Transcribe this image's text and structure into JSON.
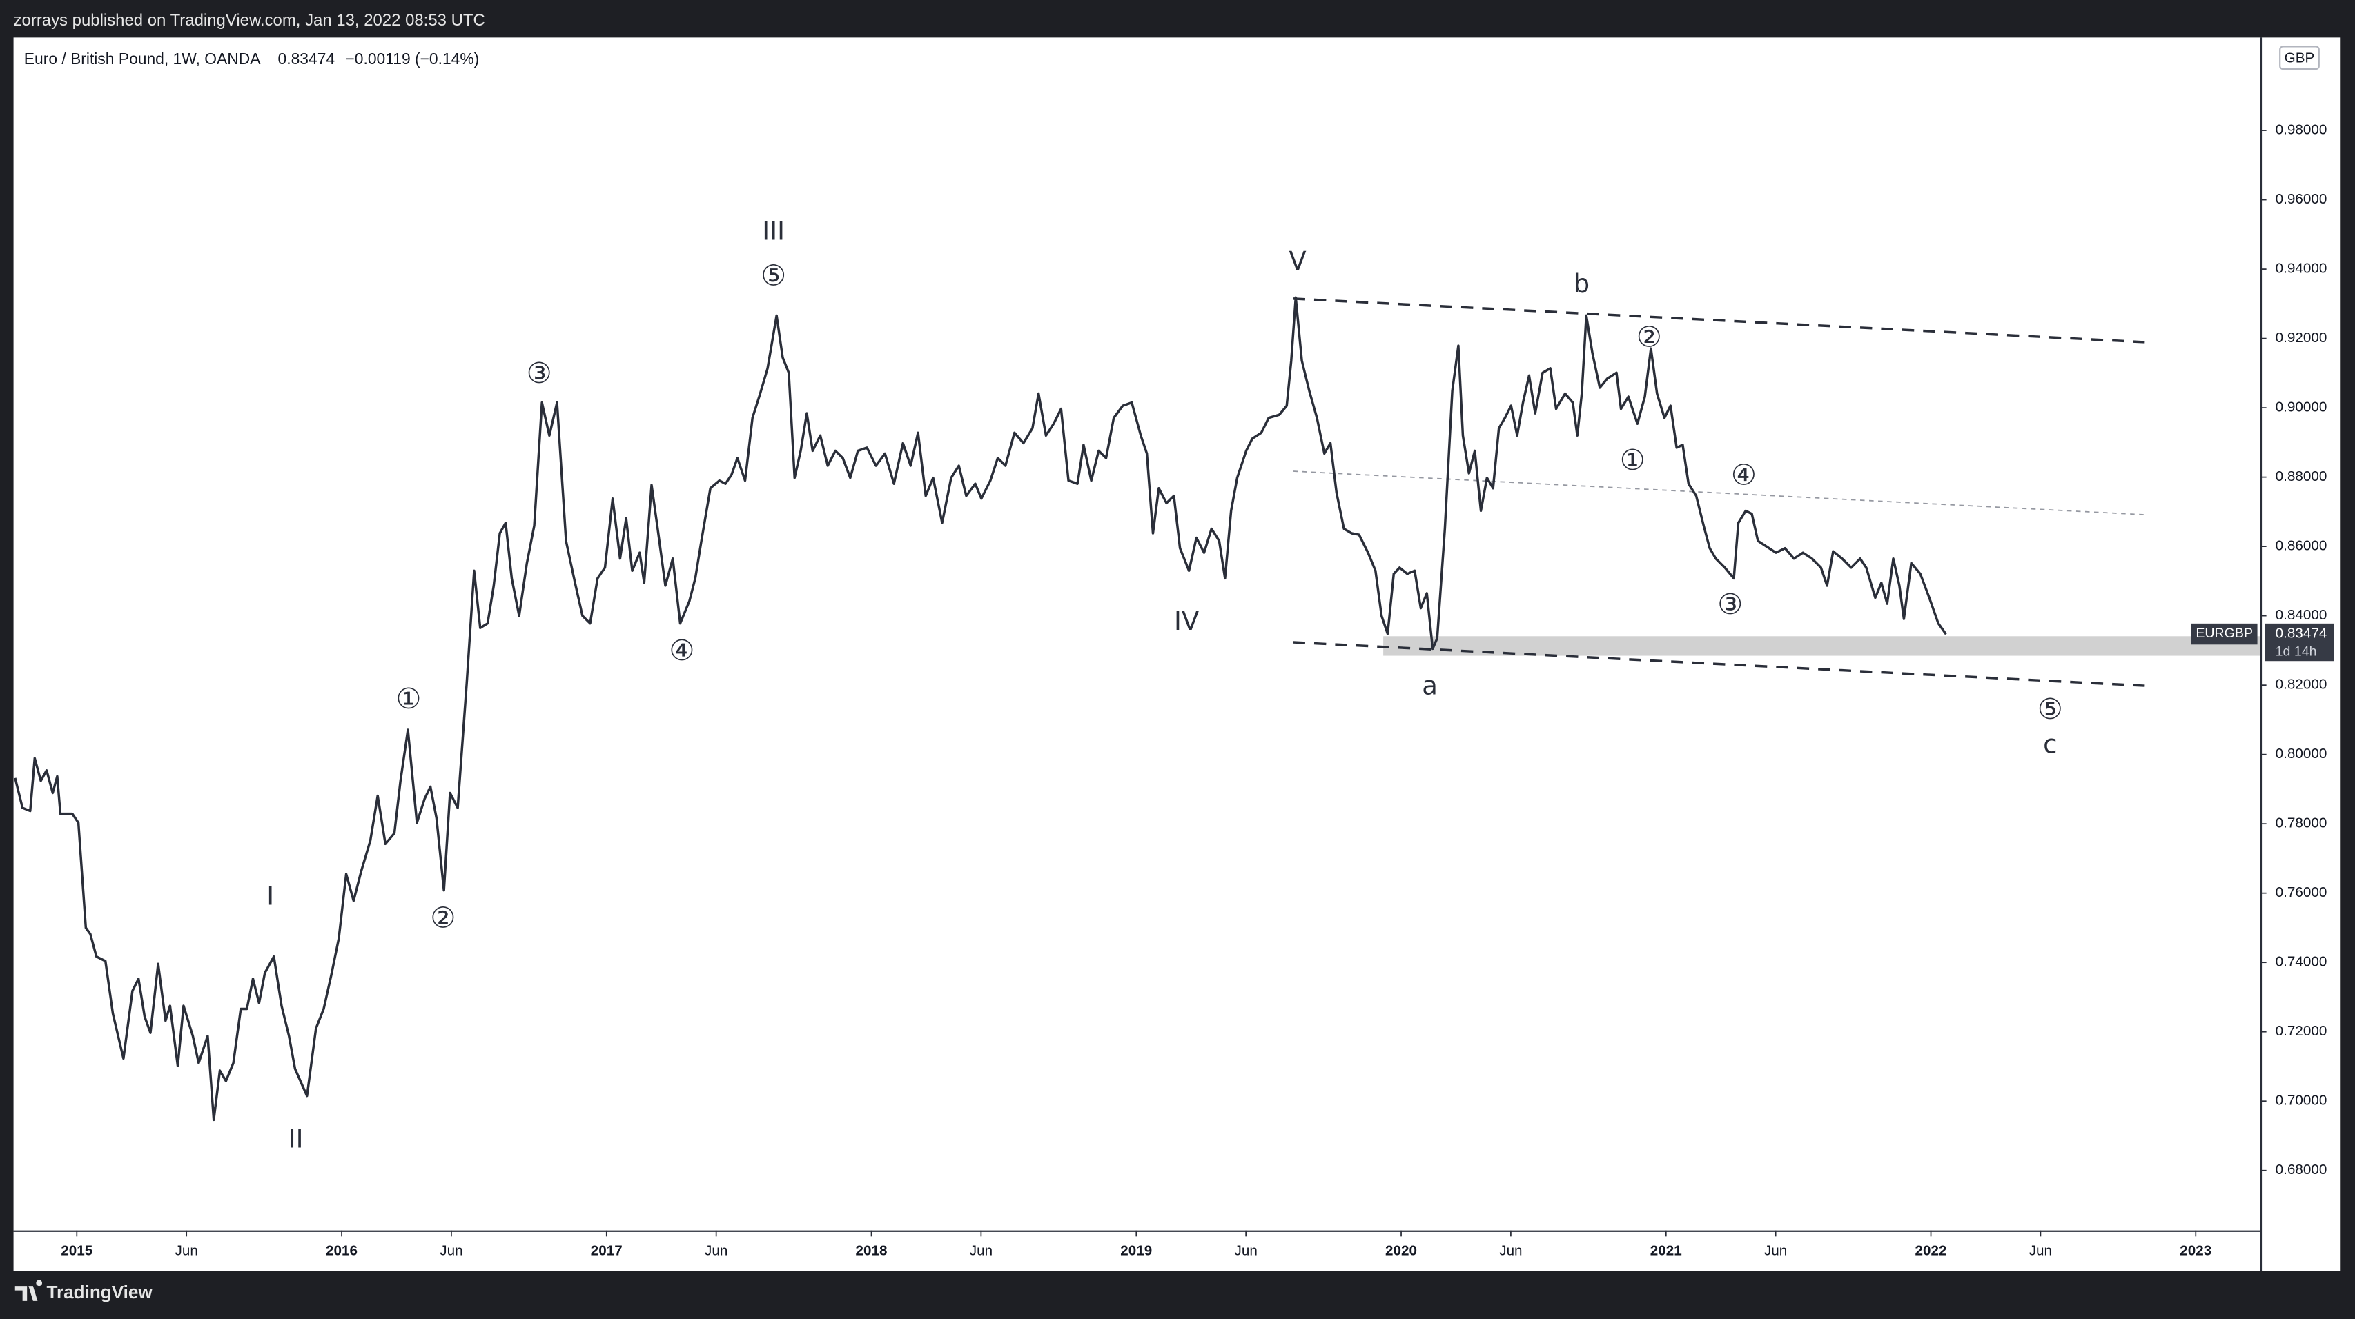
{
  "published": "zorrays published on TradingView.com, Jan 13, 2022 08:53 UTC",
  "brand": "TradingView",
  "chart_data": {
    "type": "line",
    "title": "Euro / British Pound, 1W, OANDA",
    "last_price": 0.83474,
    "change": "−0.00119 (−0.14%)",
    "currency": "GBP",
    "countdown": "1d 14h",
    "grid": false,
    "xlim": [
      2014.761,
      2023.244
    ],
    "ylim": [
      0.6627,
      1.0068
    ],
    "xticks": [
      2015,
      {
        "value": 2015.414,
        "label": "Jun"
      },
      2016,
      {
        "value": 2016.414,
        "label": "Jun"
      },
      2017,
      {
        "value": 2017.414,
        "label": "Jun"
      },
      2018,
      {
        "value": 2018.414,
        "label": "Jun"
      },
      2019,
      {
        "value": 2019.414,
        "label": "Jun"
      },
      2020,
      {
        "value": 2020.414,
        "label": "Jun"
      },
      2021,
      {
        "value": 2021.414,
        "label": "Jun"
      },
      2022,
      {
        "value": 2022.414,
        "label": "Jun"
      },
      2023
    ],
    "yticks": [
      {
        "value": 0.68,
        "label": "0.68000"
      },
      {
        "value": 0.7,
        "label": "0.70000"
      },
      {
        "value": 0.72,
        "label": "0.72000"
      },
      {
        "value": 0.74,
        "label": "0.74000"
      },
      {
        "value": 0.76,
        "label": "0.76000"
      },
      {
        "value": 0.78,
        "label": "0.78000"
      },
      {
        "value": 0.8,
        "label": "0.80000"
      },
      {
        "value": 0.82,
        "label": "0.82000"
      },
      {
        "value": 0.84,
        "label": "0.84000"
      },
      {
        "value": 0.86,
        "label": "0.86000"
      },
      {
        "value": 0.88,
        "label": "0.88000"
      },
      {
        "value": 0.9,
        "label": "0.90000"
      },
      {
        "value": 0.92,
        "label": "0.92000"
      },
      {
        "value": 0.94,
        "label": "0.94000"
      },
      {
        "value": 0.96,
        "label": "0.96000"
      },
      {
        "value": 0.98,
        "label": "0.98000"
      }
    ],
    "annotations": [
      "I",
      "II",
      "III",
      "IV",
      "V",
      "a",
      "b",
      "c",
      "①",
      "②",
      "③",
      "④",
      "⑤",
      "①",
      "②",
      "③",
      "④",
      "⑤"
    ],
    "x": [
      2014.767,
      2014.795,
      2014.824,
      2014.841,
      2014.864,
      2014.886,
      2014.909,
      2014.926,
      2014.938,
      2014.983,
      2015.006,
      2015.034,
      2015.051,
      2015.074,
      2015.108,
      2015.136,
      2015.176,
      2015.21,
      2015.233,
      2015.256,
      2015.278,
      2015.307,
      2015.335,
      2015.352,
      2015.381,
      2015.403,
      2015.438,
      2015.46,
      2015.494,
      2015.517,
      2015.54,
      2015.563,
      2015.591,
      2015.619,
      2015.642,
      2015.665,
      2015.688,
      2015.71,
      2015.744,
      2015.773,
      2015.801,
      2015.824,
      2015.869,
      2015.903,
      2015.932,
      2015.96,
      2015.989,
      2016.017,
      2016.045,
      2016.074,
      2016.108,
      2016.136,
      2016.165,
      2016.199,
      2016.222,
      2016.25,
      2016.284,
      2016.313,
      2016.335,
      2016.358,
      2016.386,
      2016.409,
      2016.438,
      2016.472,
      2016.5,
      2016.523,
      2016.551,
      2016.574,
      2016.597,
      2016.619,
      2016.642,
      2016.67,
      2016.699,
      2016.727,
      2016.756,
      2016.784,
      2016.813,
      2016.847,
      2016.881,
      2016.909,
      2016.938,
      2016.966,
      2016.994,
      2017.023,
      2017.051,
      2017.074,
      2017.097,
      2017.125,
      2017.142,
      2017.17,
      2017.193,
      2017.222,
      2017.25,
      2017.278,
      2017.313,
      2017.335,
      2017.358,
      2017.392,
      2017.426,
      2017.449,
      2017.472,
      2017.494,
      2017.523,
      2017.551,
      2017.58,
      2017.608,
      2017.642,
      2017.665,
      2017.688,
      2017.71,
      2017.733,
      2017.756,
      2017.778,
      2017.807,
      2017.835,
      2017.864,
      2017.892,
      2017.92,
      2017.949,
      2017.983,
      2018.017,
      2018.051,
      2018.085,
      2018.119,
      2018.148,
      2018.176,
      2018.205,
      2018.233,
      2018.267,
      2018.301,
      2018.33,
      2018.358,
      2018.392,
      2018.415,
      2018.449,
      2018.477,
      2018.506,
      2018.54,
      2018.574,
      2018.608,
      2018.631,
      2018.659,
      2018.688,
      2018.716,
      2018.744,
      2018.778,
      2018.801,
      2018.83,
      2018.858,
      2018.886,
      2018.915,
      2018.949,
      2018.983,
      2019.017,
      2019.04,
      2019.063,
      2019.085,
      2019.114,
      2019.142,
      2019.165,
      2019.199,
      2019.227,
      2019.256,
      2019.284,
      2019.313,
      2019.335,
      2019.358,
      2019.381,
      2019.415,
      2019.438,
      2019.472,
      2019.5,
      2019.54,
      2019.568,
      2019.585,
      2019.602,
      2019.625,
      2019.653,
      2019.682,
      2019.71,
      2019.733,
      2019.756,
      2019.784,
      2019.813,
      2019.841,
      2019.875,
      2019.903,
      2019.926,
      2019.949,
      2019.972,
      2019.994,
      2020.023,
      2020.051,
      2020.074,
      2020.097,
      2020.119,
      2020.136,
      2020.165,
      2020.193,
      2020.216,
      2020.233,
      2020.256,
      2020.278,
      2020.301,
      2020.324,
      2020.347,
      2020.369,
      2020.392,
      2020.415,
      2020.438,
      2020.46,
      2020.483,
      2020.506,
      2020.534,
      2020.563,
      2020.585,
      2020.619,
      2020.648,
      2020.665,
      2020.682,
      2020.699,
      2020.722,
      2020.75,
      2020.778,
      2020.813,
      2020.83,
      2020.858,
      2020.892,
      2020.92,
      2020.943,
      2020.966,
      2020.994,
      2021.017,
      2021.04,
      2021.063,
      2021.085,
      2021.114,
      2021.142,
      2021.165,
      2021.188,
      2021.222,
      2021.256,
      2021.273,
      2021.301,
      2021.324,
      2021.347,
      2021.381,
      2021.415,
      2021.449,
      2021.483,
      2021.517,
      2021.551,
      2021.585,
      2021.608,
      2021.631,
      2021.665,
      2021.699,
      2021.733,
      2021.756,
      2021.79,
      2021.813,
      2021.835,
      2021.858,
      2021.881,
      2021.898,
      2021.926,
      2021.96,
      2021.994,
      2022.028,
      2022.057
    ],
    "series": [
      {
        "name": "EURGBP",
        "color": "#2a2e39",
        "values": [
          0.7932,
          0.7846,
          0.7837,
          0.7989,
          0.7924,
          0.7954,
          0.7889,
          0.7937,
          0.7829,
          0.7829,
          0.7803,
          0.75,
          0.7482,
          0.7417,
          0.7404,
          0.7253,
          0.7123,
          0.7318,
          0.7353,
          0.7244,
          0.7197,
          0.7396,
          0.7232,
          0.7275,
          0.7102,
          0.7275,
          0.7188,
          0.711,
          0.7188,
          0.6946,
          0.7088,
          0.7058,
          0.711,
          0.7266,
          0.7266,
          0.7353,
          0.7283,
          0.737,
          0.7417,
          0.7275,
          0.7188,
          0.7093,
          0.7015,
          0.721,
          0.7266,
          0.7361,
          0.7469,
          0.7655,
          0.7578,
          0.7664,
          0.7751,
          0.7881,
          0.7742,
          0.7773,
          0.7924,
          0.8071,
          0.7803,
          0.7872,
          0.7907,
          0.7816,
          0.7608,
          0.7889,
          0.7846,
          0.8205,
          0.853,
          0.8365,
          0.8378,
          0.8487,
          0.8638,
          0.8668,
          0.8508,
          0.84,
          0.8551,
          0.866,
          0.9015,
          0.892,
          0.9015,
          0.8616,
          0.8495,
          0.84,
          0.8378,
          0.8508,
          0.8539,
          0.8738,
          0.8565,
          0.8681,
          0.853,
          0.8582,
          0.8495,
          0.8777,
          0.8651,
          0.8487,
          0.8565,
          0.8378,
          0.8443,
          0.8508,
          0.8616,
          0.8768,
          0.879,
          0.8781,
          0.8807,
          0.8855,
          0.879,
          0.8971,
          0.9041,
          0.9114,
          0.9266,
          0.9145,
          0.9101,
          0.8798,
          0.8876,
          0.8984,
          0.8876,
          0.892,
          0.8833,
          0.8876,
          0.8855,
          0.8798,
          0.8876,
          0.8885,
          0.8833,
          0.8868,
          0.8781,
          0.8898,
          0.8833,
          0.8928,
          0.8746,
          0.8798,
          0.8668,
          0.8798,
          0.8833,
          0.8746,
          0.8781,
          0.8738,
          0.879,
          0.8855,
          0.8833,
          0.8928,
          0.8898,
          0.8941,
          0.9041,
          0.892,
          0.8954,
          0.8997,
          0.879,
          0.8781,
          0.8893,
          0.879,
          0.8876,
          0.8855,
          0.8971,
          0.9006,
          0.9015,
          0.892,
          0.8868,
          0.8638,
          0.8768,
          0.8725,
          0.8746,
          0.8595,
          0.853,
          0.8625,
          0.8582,
          0.8651,
          0.8616,
          0.8508,
          0.8703,
          0.8798,
          0.8876,
          0.8911,
          0.8928,
          0.8971,
          0.898,
          0.9006,
          0.9136,
          0.9318,
          0.9136,
          0.9049,
          0.8971,
          0.8868,
          0.8898,
          0.8755,
          0.8651,
          0.8638,
          0.8634,
          0.8582,
          0.853,
          0.84,
          0.8348,
          0.8521,
          0.8539,
          0.8521,
          0.853,
          0.8422,
          0.8465,
          0.8305,
          0.8335,
          0.8651,
          0.9049,
          0.9179,
          0.892,
          0.8811,
          0.8876,
          0.8703,
          0.8798,
          0.8768,
          0.8941,
          0.8971,
          0.9006,
          0.892,
          0.9015,
          0.9093,
          0.8984,
          0.9101,
          0.9114,
          0.8997,
          0.9041,
          0.9015,
          0.892,
          0.9041,
          0.9266,
          0.9158,
          0.9058,
          0.9084,
          0.9101,
          0.8997,
          0.9032,
          0.8954,
          0.9032,
          0.9171,
          0.9041,
          0.8971,
          0.9006,
          0.8885,
          0.8893,
          0.8781,
          0.8746,
          0.866,
          0.8595,
          0.8565,
          0.8539,
          0.8508,
          0.8668,
          0.8703,
          0.8694,
          0.8616,
          0.8599,
          0.8582,
          0.8595,
          0.8565,
          0.8582,
          0.8565,
          0.8539,
          0.8487,
          0.8586,
          0.8565,
          0.8539,
          0.8565,
          0.8539,
          0.8452,
          0.8495,
          0.8435,
          0.8565,
          0.8487,
          0.8391,
          0.8552,
          0.8521,
          0.8452,
          0.8378,
          0.8347
        ]
      }
    ]
  }
}
